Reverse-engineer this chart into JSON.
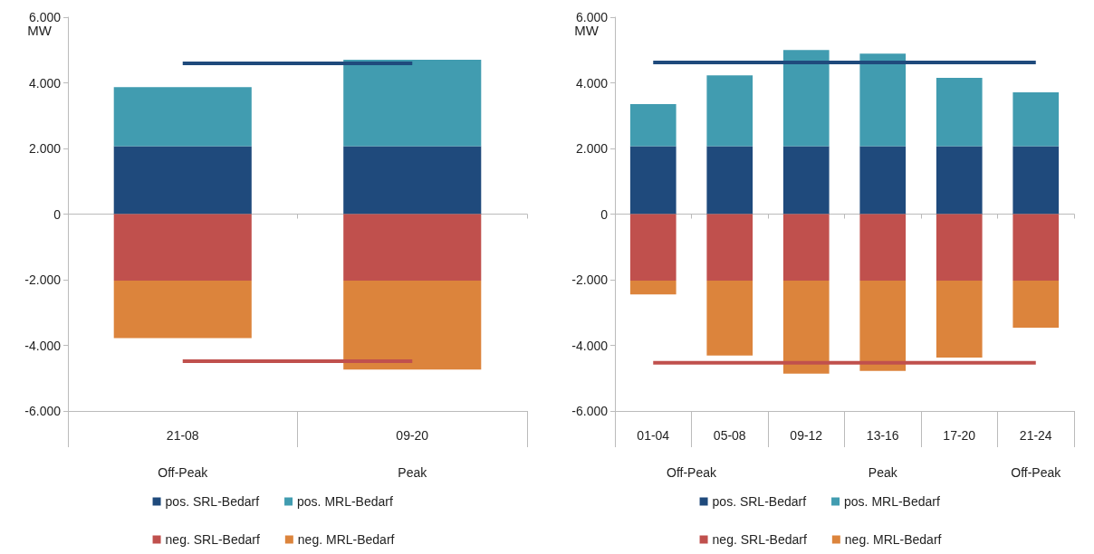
{
  "chart_data": [
    {
      "type": "bar",
      "stacked": true,
      "categories": [
        "21-08",
        "09-20"
      ],
      "ylabel": "MW",
      "ylim": [
        -6000,
        6000
      ],
      "yticks": [
        {
          "value": -6000,
          "label": "-6.000"
        },
        {
          "value": -4000,
          "label": "-4.000"
        },
        {
          "value": -2000,
          "label": "-2.000"
        },
        0,
        {
          "value": 2000,
          "label": "2.000"
        },
        {
          "value": 4000,
          "label": "4.000"
        },
        {
          "value": 6000,
          "label": "6.000"
        }
      ],
      "legend": "bottom",
      "marker": "none",
      "annotations": [
        "Off-Peak",
        "Peak"
      ],
      "series": [
        {
          "name": "pos. SRL-Bedarf",
          "color": "#1f4a7c",
          "values": [
            2070,
            2070
          ]
        },
        {
          "name": "pos. MRL-Bedarf",
          "color": "#419cb0",
          "values": [
            1800,
            2630
          ]
        },
        {
          "name": "neg. SRL-Bedarf",
          "color": "#c0504d",
          "values": [
            -2030,
            -2030
          ]
        },
        {
          "name": "neg. MRL-Bedarf",
          "color": "#dc843c",
          "values": [
            -1750,
            -2710
          ]
        },
        {
          "type": "line",
          "color": "#1f4a7c",
          "values": [
            4590,
            4590
          ]
        },
        {
          "type": "line",
          "color": "#c0504d",
          "values": [
            -4480,
            -4480
          ]
        }
      ]
    },
    {
      "type": "bar",
      "stacked": true,
      "categories": [
        "01-04",
        "05-08",
        "09-12",
        "13-16",
        "17-20",
        "21-24"
      ],
      "ylabel": "MW",
      "ylim": [
        -6000,
        6000
      ],
      "yticks": [
        {
          "value": -6000,
          "label": "-6.000"
        },
        {
          "value": -4000,
          "label": "-4.000"
        },
        {
          "value": -2000,
          "label": "-2.000"
        },
        0,
        {
          "value": 2000,
          "label": "2.000"
        },
        {
          "value": 4000,
          "label": "4.000"
        },
        {
          "value": 6000,
          "label": "6.000"
        }
      ],
      "legend": "bottom",
      "marker": "none",
      "annotations": [
        "Off-Peak",
        "Peak",
        "Off-Peak"
      ],
      "series": [
        {
          "name": "pos. SRL-Bedarf",
          "color": "#1f4a7c",
          "values": [
            2070,
            2070,
            2070,
            2070,
            2070,
            2070
          ]
        },
        {
          "name": "pos. MRL-Bedarf",
          "color": "#419cb0",
          "values": [
            1280,
            2160,
            2930,
            2820,
            2080,
            1640
          ]
        },
        {
          "name": "neg. SRL-Bedarf",
          "color": "#c0504d",
          "values": [
            -2030,
            -2030,
            -2030,
            -2030,
            -2030,
            -2030
          ]
        },
        {
          "name": "neg. MRL-Bedarf",
          "color": "#dc843c",
          "values": [
            -420,
            -2280,
            -2830,
            -2750,
            -2340,
            -1430
          ]
        },
        {
          "type": "line",
          "color": "#1f4a7c",
          "values": [
            4620,
            4620,
            4620,
            4620,
            4620,
            4620
          ]
        },
        {
          "type": "line",
          "color": "#c0504d",
          "values": [
            -4530,
            -4530,
            -4530,
            -4530,
            -4530,
            -4530
          ]
        }
      ]
    }
  ]
}
